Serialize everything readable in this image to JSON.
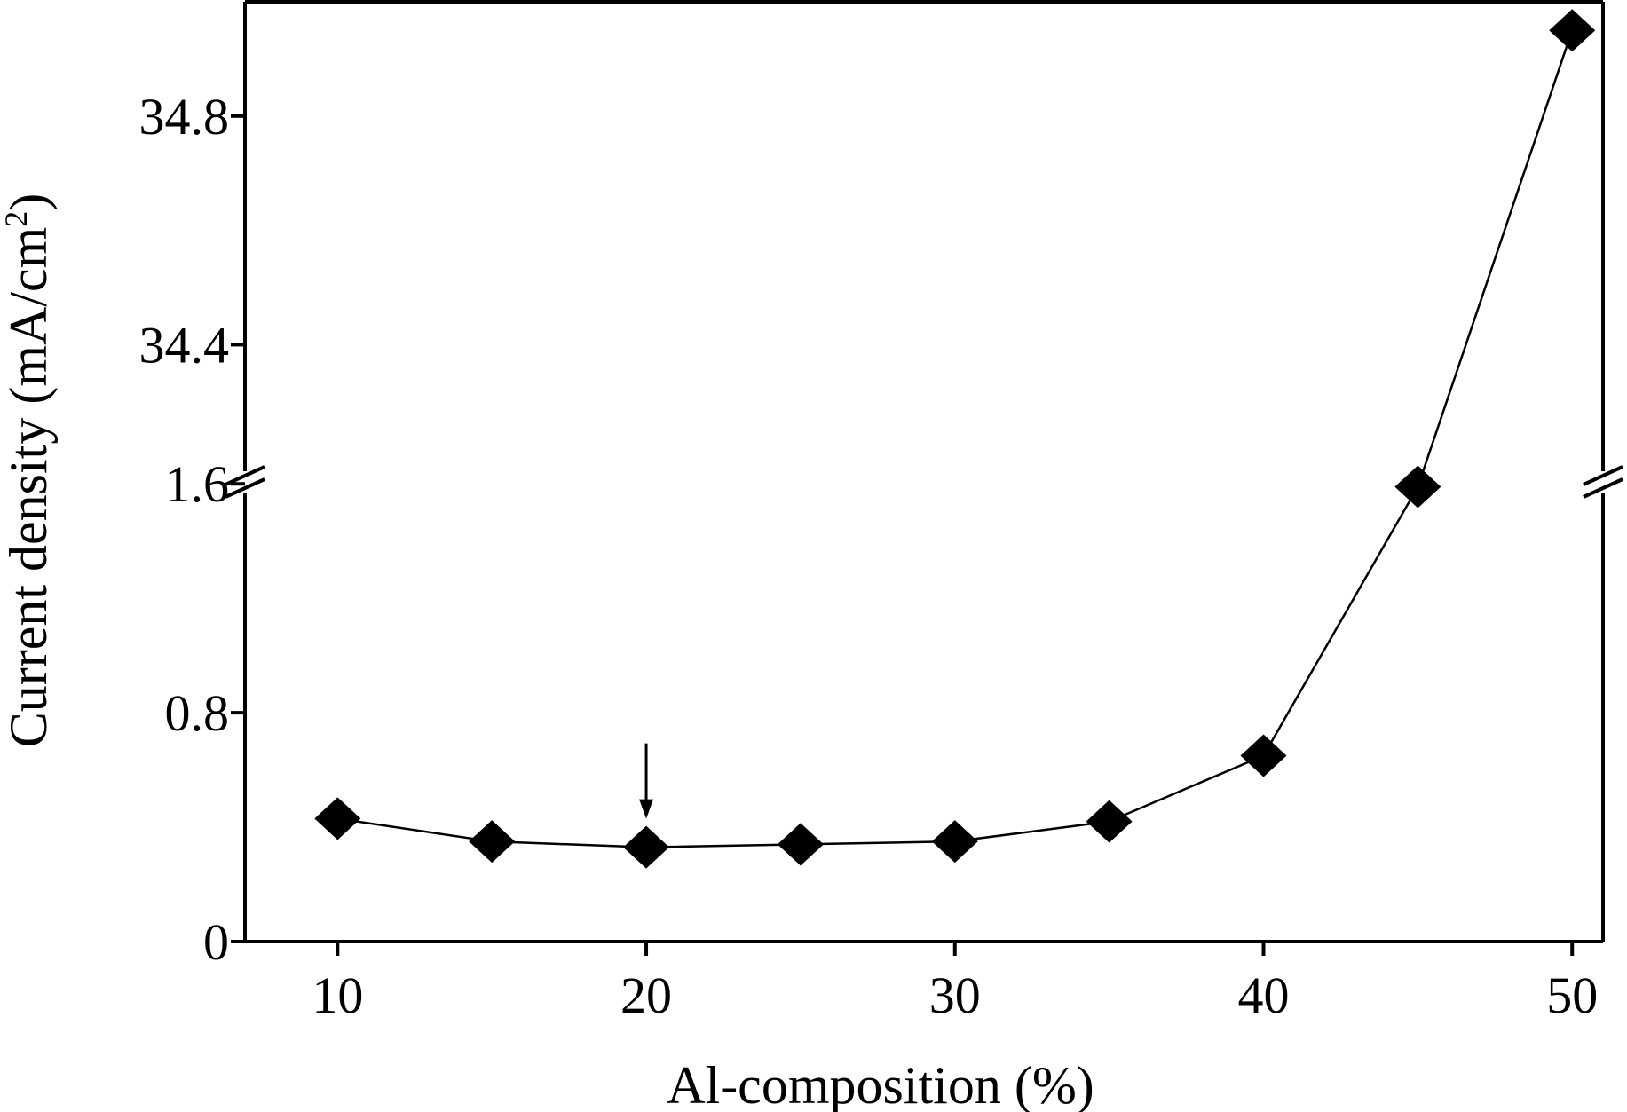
{
  "chart_data": {
    "type": "line",
    "title": "",
    "xlabel": "Al-composition (%)",
    "ylabel": "Current density (mA/cm",
    "ylabel_superscript": "2",
    "ylabel_suffix": ")",
    "x_ticks": [
      "10",
      "20",
      "30",
      "40",
      "50"
    ],
    "y_ticks_lower": [
      "0",
      "0.8",
      "1.6"
    ],
    "y_ticks_upper": [
      "34.4",
      "34.8"
    ],
    "xlim": [
      7,
      51
    ],
    "ylim_lower": [
      0,
      1.7
    ],
    "ylim_upper": [
      34.16,
      35.0
    ],
    "axis_break": true,
    "grid": false,
    "legend": "none",
    "marker": "diamond",
    "color": "#000000",
    "series": [
      {
        "x": [
          10,
          15,
          20,
          25,
          30,
          35,
          40,
          45,
          50
        ],
        "y": [
          0.43,
          0.35,
          0.33,
          0.34,
          0.35,
          0.42,
          0.65,
          1.59,
          34.95
        ]
      }
    ],
    "annotations": [
      {
        "type": "arrow",
        "x": 20,
        "points_to": 0.33
      }
    ]
  }
}
